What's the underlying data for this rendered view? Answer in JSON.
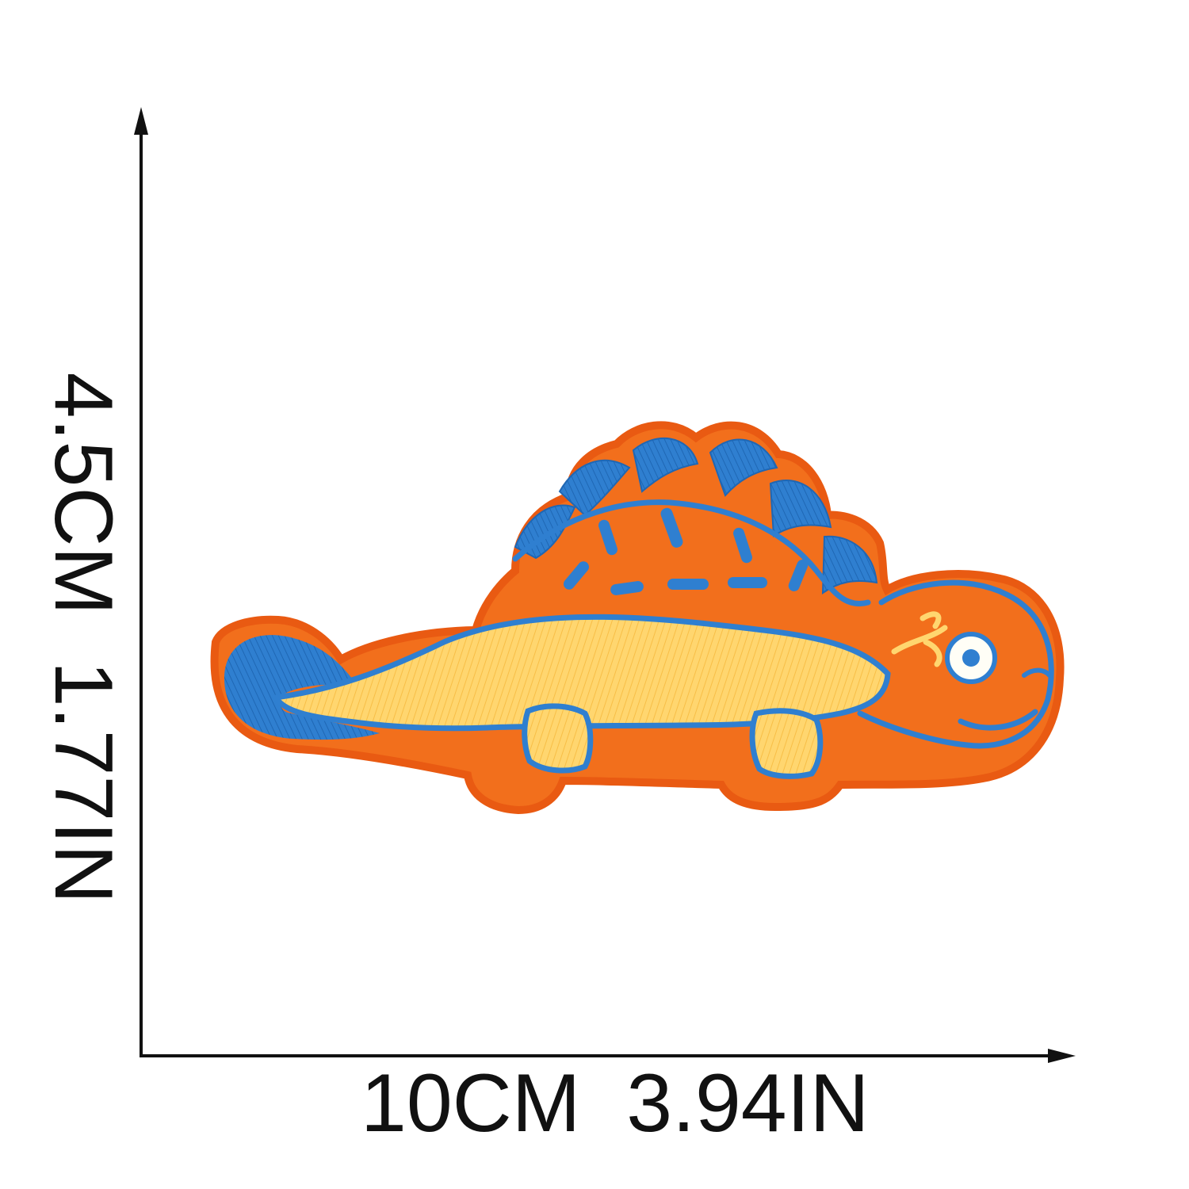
{
  "dimensions": {
    "height_label": "4.5CM  1.77IN",
    "width_label": "10CM  3.94IN"
  },
  "product": {
    "name_icon": "dinosaur-patch",
    "colors": {
      "felt": "#f26f1c",
      "felt_edge": "#e95a12",
      "blue": "#2f7fd0",
      "yellow": "#ffd66f",
      "yellow_deep": "#f8be46",
      "eye_white": "#fffef6"
    }
  },
  "axes": {
    "line_color": "#111111"
  }
}
